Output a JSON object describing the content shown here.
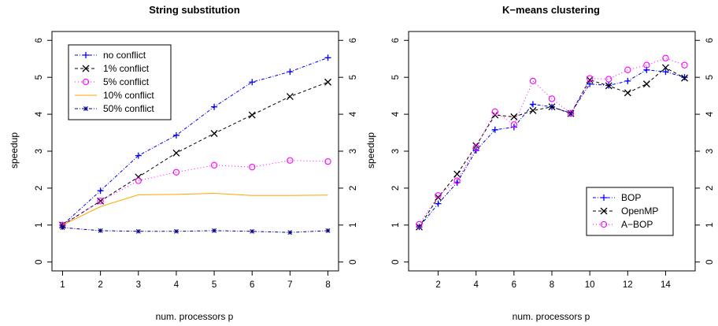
{
  "chart_data": [
    {
      "type": "line",
      "title": "String substitution",
      "xlabel": "num. processors p",
      "ylabel": "speedup",
      "x": [
        1,
        2,
        3,
        4,
        5,
        6,
        7,
        8
      ],
      "xticks": [
        "1",
        "2",
        "3",
        "4",
        "5",
        "6",
        "7",
        "8"
      ],
      "xlim": [
        1,
        8
      ],
      "ylim": [
        0,
        6
      ],
      "yticks": [
        "0",
        "1",
        "2",
        "3",
        "4",
        "5",
        "6"
      ],
      "legend_position": "top-left",
      "series": [
        {
          "name": "no conflict",
          "color": "#0000ff",
          "marker": "plus",
          "dash": "dashdot",
          "values": [
            1.0,
            1.93,
            2.88,
            3.43,
            4.2,
            4.87,
            5.15,
            5.53
          ]
        },
        {
          "name": "1% conflict",
          "color": "#000000",
          "marker": "x",
          "dash": "dashed",
          "values": [
            1.0,
            1.65,
            2.3,
            2.95,
            3.48,
            3.98,
            4.48,
            4.87
          ]
        },
        {
          "name": "5% conflict",
          "color": "#ff00ff",
          "marker": "circle",
          "dash": "dotted",
          "values": [
            1.0,
            1.65,
            2.2,
            2.43,
            2.62,
            2.57,
            2.75,
            2.72
          ]
        },
        {
          "name": "10% conflict",
          "color": "#ffa500",
          "marker": "none",
          "dash": "solid",
          "values": [
            1.0,
            1.5,
            1.82,
            1.83,
            1.86,
            1.8,
            1.8,
            1.81
          ]
        },
        {
          "name": "50% conflict",
          "color": "#00008b",
          "marker": "star",
          "dash": "dashdot",
          "values": [
            0.93,
            0.85,
            0.83,
            0.83,
            0.85,
            0.83,
            0.8,
            0.85
          ]
        }
      ]
    },
    {
      "type": "line",
      "title": "K−means clustering",
      "xlabel": "num. processors p",
      "ylabel": "speedup",
      "x": [
        1,
        2,
        3,
        4,
        5,
        6,
        7,
        8,
        9,
        10,
        11,
        12,
        13,
        14,
        15
      ],
      "xticks": [
        "2",
        "4",
        "6",
        "8",
        "10",
        "12",
        "14"
      ],
      "xlim": [
        1,
        15
      ],
      "ylim": [
        0,
        6
      ],
      "yticks": [
        "0",
        "1",
        "2",
        "3",
        "4",
        "5",
        "6"
      ],
      "legend_position": "bottom-right",
      "series": [
        {
          "name": "BOP",
          "color": "#0000ff",
          "marker": "plus",
          "dash": "dashdot",
          "values": [
            0.95,
            1.58,
            2.15,
            3.02,
            3.58,
            3.65,
            4.27,
            4.2,
            4.03,
            4.82,
            4.78,
            4.9,
            5.2,
            5.15,
            5.0
          ]
        },
        {
          "name": "OpenMP",
          "color": "#000000",
          "marker": "x",
          "dash": "dashed",
          "values": [
            0.95,
            1.75,
            2.38,
            3.15,
            3.98,
            3.93,
            4.1,
            4.2,
            4.02,
            4.93,
            4.77,
            4.58,
            4.82,
            5.26,
            4.98
          ]
        },
        {
          "name": "A−BOP",
          "color": "#ff00ff",
          "marker": "circle",
          "dash": "dotted",
          "values": [
            1.02,
            1.8,
            2.2,
            3.1,
            4.07,
            3.72,
            4.9,
            4.42,
            4.02,
            4.97,
            4.95,
            5.2,
            5.33,
            5.52,
            5.33
          ]
        }
      ]
    }
  ]
}
